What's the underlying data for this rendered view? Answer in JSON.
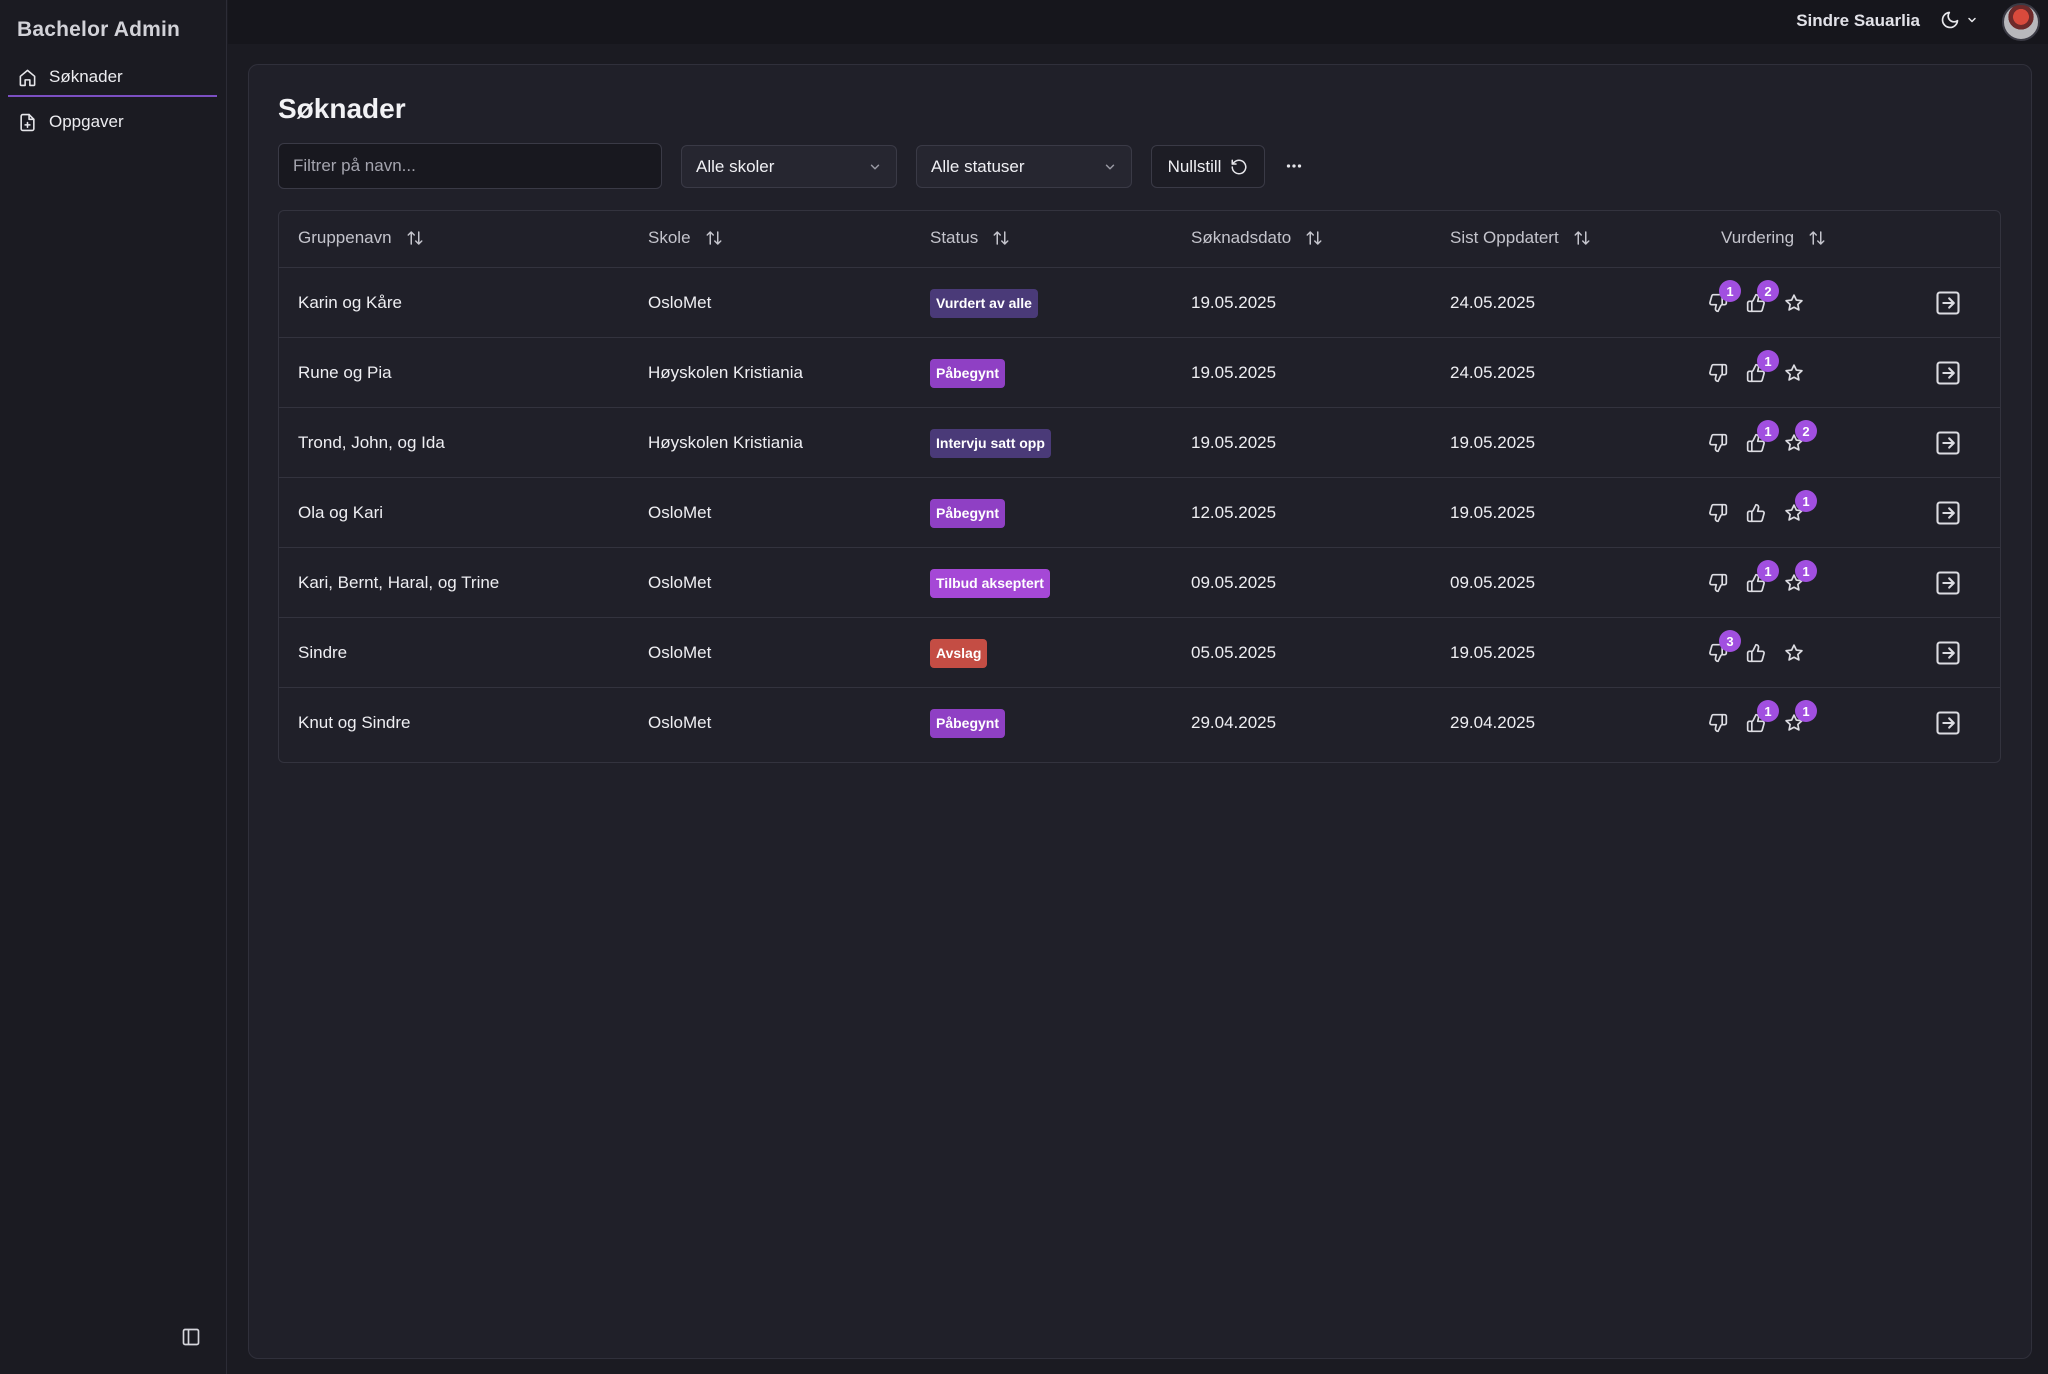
{
  "app": {
    "title": "Bachelor Admin"
  },
  "sidebar": {
    "items": [
      {
        "label": "Søknader",
        "icon": "home-icon"
      },
      {
        "label": "Oppgaver",
        "icon": "file-plus-icon"
      }
    ]
  },
  "topbar": {
    "user_name": "Sindre Sauarlia"
  },
  "page": {
    "title": "Søknader"
  },
  "filters": {
    "search_placeholder": "Filtrer på navn...",
    "school_select": "Alle skoler",
    "status_select": "Alle statuser",
    "reset_label": "Nullstill"
  },
  "table": {
    "headers": {
      "name": "Gruppenavn",
      "school": "Skole",
      "status": "Status",
      "applied": "Søknadsdato",
      "updated": "Sist Oppdatert",
      "rating": "Vurdering"
    },
    "rows": [
      {
        "name": "Karin og Kåre",
        "school": "OsloMet",
        "status": "Vurdert av alle",
        "status_color": "#4a3a78",
        "applied": "19.05.2025",
        "updated": "24.05.2025",
        "down": "1",
        "up": "2",
        "star": ""
      },
      {
        "name": "Rune og Pia",
        "school": "Høyskolen Kristiania",
        "status": "Påbegynt",
        "status_color": "#8f40c4",
        "applied": "19.05.2025",
        "updated": "24.05.2025",
        "down": "",
        "up": "1",
        "star": ""
      },
      {
        "name": "Trond, John, og Ida",
        "school": "Høyskolen Kristiania",
        "status": "Intervju satt opp",
        "status_color": "#4a3a78",
        "applied": "19.05.2025",
        "updated": "19.05.2025",
        "down": "",
        "up": "1",
        "star": "2"
      },
      {
        "name": "Ola og Kari",
        "school": "OsloMet",
        "status": "Påbegynt",
        "status_color": "#8f40c4",
        "applied": "12.05.2025",
        "updated": "19.05.2025",
        "down": "",
        "up": "",
        "star": "1"
      },
      {
        "name": "Kari, Bernt, Haral, og Trine",
        "school": "OsloMet",
        "status": "Tilbud akseptert",
        "status_color": "#a548d6",
        "applied": "09.05.2025",
        "updated": "09.05.2025",
        "down": "",
        "up": "1",
        "star": "1"
      },
      {
        "name": "Sindre",
        "school": "OsloMet",
        "status": "Avslag",
        "status_color": "#c44d44",
        "applied": "05.05.2025",
        "updated": "19.05.2025",
        "down": "3",
        "up": "",
        "star": ""
      },
      {
        "name": "Knut og Sindre",
        "school": "OsloMet",
        "status": "Påbegynt",
        "status_color": "#8f40c4",
        "applied": "29.04.2025",
        "updated": "29.04.2025",
        "down": "",
        "up": "1",
        "star": "1"
      }
    ]
  }
}
